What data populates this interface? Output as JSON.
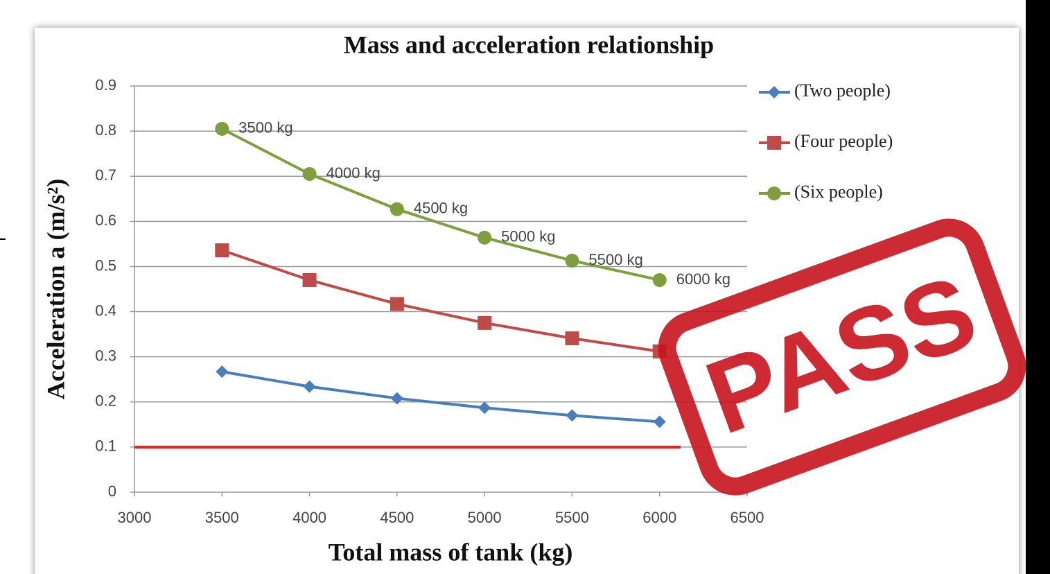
{
  "chart_data": {
    "type": "line",
    "title": "Mass and acceleration relationship",
    "x_label": "Total mass of tank (kg)",
    "y_label": "Acceleration  a (m/s²)",
    "x": [
      3500,
      4000,
      4500,
      5000,
      5500,
      6000
    ],
    "series": [
      {
        "name": "(Two people)",
        "color": "#4a7ebb",
        "marker": "diamond",
        "values": [
          0.267,
          0.234,
          0.208,
          0.187,
          0.17,
          0.156
        ]
      },
      {
        "name": "(Four people)",
        "color": "#be4b48",
        "marker": "square",
        "values": [
          0.536,
          0.47,
          0.417,
          0.375,
          0.341,
          0.312
        ]
      },
      {
        "name": "(Six people)",
        "color": "#7f9f3f",
        "marker": "circle",
        "values": [
          0.805,
          0.705,
          0.627,
          0.564,
          0.513,
          0.47
        ],
        "point_labels": [
          "3500 kg",
          "4000 kg",
          "4500 kg",
          "5000 kg",
          "5500 kg",
          "6000 kg"
        ]
      }
    ],
    "reference_line": {
      "value": 0.1,
      "x_start": 3000,
      "x_end": 6120,
      "color": "#e8201f"
    },
    "xlim": [
      3000,
      6500
    ],
    "xticks": [
      3000,
      3500,
      4000,
      4500,
      5000,
      5500,
      6000,
      6500
    ],
    "ylim": [
      0,
      0.9
    ],
    "yticks": [
      0,
      0.1,
      0.2,
      0.3,
      0.4,
      0.5,
      0.6,
      0.7,
      0.8,
      0.9
    ],
    "grid": true,
    "legend": "right",
    "stamp": {
      "text": "PASS",
      "color": "#c8141e"
    }
  }
}
